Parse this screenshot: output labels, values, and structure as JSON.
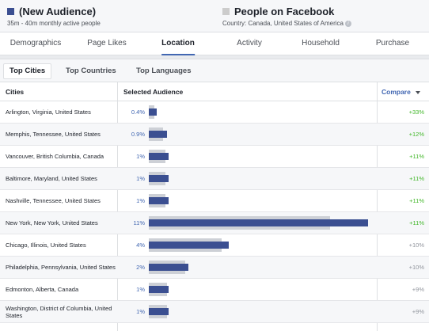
{
  "colors": {
    "accent": "#4267b2",
    "bar_dark": "#3b4f91",
    "bar_light": "#cdd0d6",
    "positive": "#42b72a",
    "neutral": "#90949c",
    "baseline_square": "#cccccc"
  },
  "audience": {
    "title": "(New Audience)",
    "subtitle": "35m - 40m monthly active people",
    "color": "#3b4f91"
  },
  "baseline": {
    "title": "People on Facebook",
    "subtitle": "Country: Canada, United States of America",
    "info_icon": "info-icon",
    "color": "#cccccc"
  },
  "tabs": [
    {
      "label": "Demographics",
      "active": false
    },
    {
      "label": "Page Likes",
      "active": false
    },
    {
      "label": "Location",
      "active": true
    },
    {
      "label": "Activity",
      "active": false
    },
    {
      "label": "Household",
      "active": false
    },
    {
      "label": "Purchase",
      "active": false
    }
  ],
  "subtabs": [
    {
      "label": "Top Cities",
      "active": true
    },
    {
      "label": "Top Countries",
      "active": false
    },
    {
      "label": "Top Languages",
      "active": false
    }
  ],
  "table": {
    "col_city": "Cities",
    "col_selected": "Selected Audience",
    "col_compare": "Compare",
    "compare_icon": "caret-down-icon",
    "rows": [
      {
        "city": "Arlington, Virginia, United States",
        "pct": "0.4%",
        "value": 0.4,
        "baseline": 0.3,
        "compare": "+33%",
        "positive": true
      },
      {
        "city": "Memphis, Tennessee, United States",
        "pct": "0.9%",
        "value": 0.9,
        "baseline": 0.8,
        "compare": "+12%",
        "positive": true
      },
      {
        "city": "Vancouver, British Columbia, Canada",
        "pct": "1%",
        "value": 1.0,
        "baseline": 0.9,
        "compare": "+11%",
        "positive": true
      },
      {
        "city": "Baltimore, Maryland, United States",
        "pct": "1%",
        "value": 1.0,
        "baseline": 0.9,
        "compare": "+11%",
        "positive": true
      },
      {
        "city": "Nashville, Tennessee, United States",
        "pct": "1%",
        "value": 1.0,
        "baseline": 0.9,
        "compare": "+11%",
        "positive": true
      },
      {
        "city": "New York, New York, United States",
        "pct": "11%",
        "value": 11.0,
        "baseline": 10.0,
        "compare": "+11%",
        "positive": true
      },
      {
        "city": "Chicago, Illinois, United States",
        "pct": "4%",
        "value": 4.0,
        "baseline": 4.0,
        "compare": "+10%",
        "positive": false
      },
      {
        "city": "Philadelphia, Pennsylvania, United States",
        "pct": "2%",
        "value": 2.0,
        "baseline": 2.0,
        "compare": "+10%",
        "positive": false
      },
      {
        "city": "Edmonton, Alberta, Canada",
        "pct": "1%",
        "value": 1.0,
        "baseline": 1.0,
        "compare": "+9%",
        "positive": false
      },
      {
        "city": "Washington, District of Columbia, United States",
        "pct": "1%",
        "value": 1.0,
        "baseline": 1.0,
        "compare": "+9%",
        "positive": false
      }
    ]
  }
}
